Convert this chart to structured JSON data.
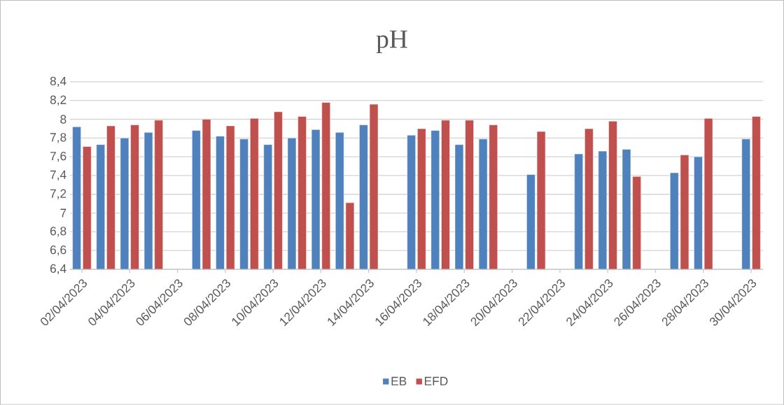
{
  "chart_data": {
    "type": "bar",
    "title": "pH",
    "categories": [
      "02/04/2023",
      null,
      "04/04/2023",
      null,
      "06/04/2023",
      null,
      "08/04/2023",
      null,
      "10/04/2023",
      null,
      "12/04/2023",
      null,
      "14/04/2023",
      null,
      "16/04/2023",
      null,
      "18/04/2023",
      null,
      "20/04/2023",
      null,
      "22/04/2023",
      null,
      "24/04/2023",
      null,
      "26/04/2023",
      null,
      "28/04/2023",
      null,
      "30/04/2023"
    ],
    "series": [
      {
        "name": "EB",
        "color": "#4f81bd",
        "values": [
          7.92,
          7.73,
          7.8,
          7.86,
          null,
          7.88,
          7.82,
          7.79,
          7.73,
          7.8,
          7.89,
          7.86,
          7.94,
          null,
          7.83,
          7.88,
          7.73,
          7.79,
          null,
          7.41,
          null,
          7.63,
          7.66,
          7.68,
          null,
          7.43,
          7.6,
          null,
          7.79
        ]
      },
      {
        "name": "EFD",
        "color": "#c0504d",
        "values": [
          7.71,
          7.93,
          7.94,
          7.99,
          null,
          8.0,
          7.93,
          8.01,
          8.08,
          8.03,
          8.18,
          7.11,
          8.16,
          null,
          7.9,
          7.99,
          7.99,
          7.94,
          null,
          7.87,
          null,
          7.9,
          7.98,
          7.39,
          null,
          7.62,
          8.01,
          null,
          8.03
        ]
      }
    ],
    "ylim": [
      6.4,
      8.4
    ],
    "yticks": [
      {
        "value": 6.4,
        "label": "6,4"
      },
      {
        "value": 6.6,
        "label": "6,6"
      },
      {
        "value": 6.8,
        "label": "6,8"
      },
      7,
      {
        "value": 7.2,
        "label": "7,2"
      },
      {
        "value": 7.4,
        "label": "7,4"
      },
      {
        "value": 7.6,
        "label": "7,6"
      },
      {
        "value": 7.8,
        "label": "7,8"
      },
      8,
      {
        "value": 8.2,
        "label": "8,2"
      },
      {
        "value": 8.4,
        "label": "8,4"
      }
    ],
    "grid": "y",
    "legend": "bottom"
  }
}
